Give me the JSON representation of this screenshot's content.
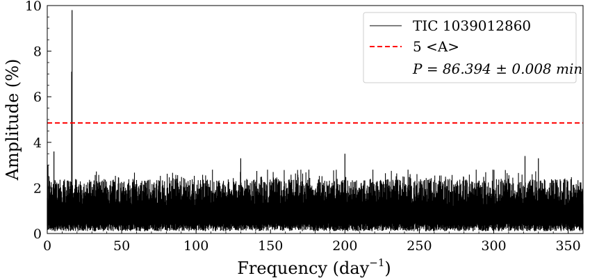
{
  "chart_data": {
    "type": "line",
    "xlabel_main": "Frequency (day",
    "xlabel_sup": "−1",
    "xlabel_end": ")",
    "ylabel": "Amplitude (%)",
    "xlim": [
      0,
      360
    ],
    "ylim": [
      0,
      10
    ],
    "x_ticks": [
      0,
      50,
      100,
      150,
      200,
      250,
      300,
      350
    ],
    "y_ticks": [
      0,
      2,
      4,
      6,
      8,
      10
    ],
    "grid": false,
    "legend_position": "top-right",
    "series": [
      {
        "name": "TIC 1039012860",
        "color": "#000000",
        "kind": "periodogram",
        "noise_level_min": 0.1,
        "noise_level_typical": 1.0,
        "noise_level_max": 2.8,
        "peaks": [
          {
            "x": 0.5,
            "y": 3.0
          },
          {
            "x": 4.5,
            "y": 3.6
          },
          {
            "x": 16.67,
            "y": 9.8
          },
          {
            "x": 16.4,
            "y": 7.1
          },
          {
            "x": 130,
            "y": 3.3
          },
          {
            "x": 200,
            "y": 3.5
          },
          {
            "x": 321,
            "y": 3.4
          },
          {
            "x": 330,
            "y": 3.3
          }
        ]
      },
      {
        "name": "5 <A>",
        "color": "#ff0000",
        "kind": "threshold",
        "y": 4.85
      }
    ],
    "legend": {
      "series_label": "TIC 1039012860",
      "threshold_label": "5 <A>",
      "period_label": "P = 86.394 ± 0.008 min"
    }
  }
}
